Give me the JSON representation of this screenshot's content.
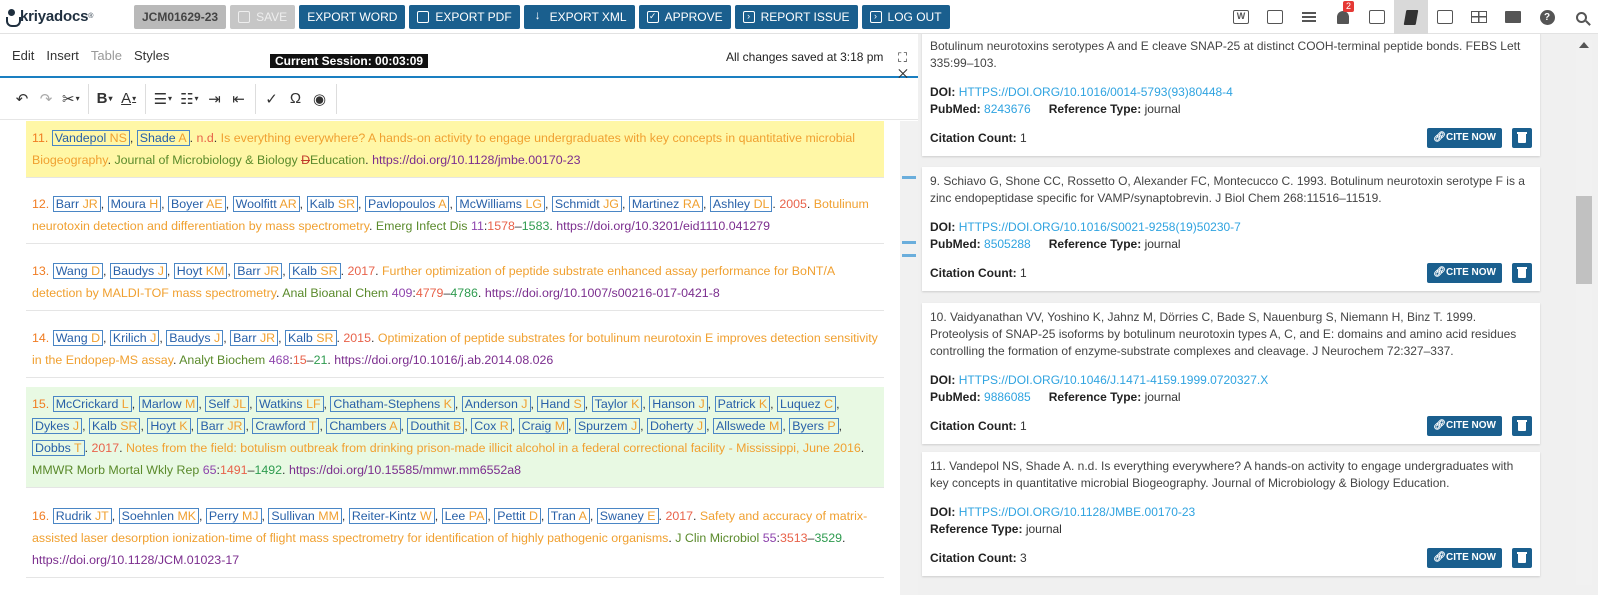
{
  "topbar": {
    "logo_text": "kriyadocs",
    "logo_reg": "®",
    "doc_id": "JCM01629-23",
    "buttons": {
      "save": "SAVE",
      "export_word": "EXPORT WORD",
      "export_pdf": "EXPORT PDF",
      "export_xml": "EXPORT XML",
      "approve": "APPROVE",
      "report_issue": "REPORT ISSUE",
      "log_out": "LOG OUT"
    },
    "icons": [
      "word-icon",
      "image-panel-icon",
      "list-icon",
      "notification-bell-icon",
      "edit-note-icon",
      "book-icon",
      "picture-icon",
      "table-icon",
      "folder-icon",
      "help-icon",
      "search-icon"
    ],
    "notification_count": "2"
  },
  "editor": {
    "menu": [
      "Edit",
      "Insert",
      "Table",
      "Styles"
    ],
    "session": "Current Session: 00:03:09",
    "saved_status": "All changes saved at 3:18 pm",
    "controls": "⛶ ✕"
  },
  "references": [
    {
      "num": "11.",
      "authors": [
        [
          "Vandepol",
          "NS"
        ],
        [
          "Shade",
          "A"
        ]
      ],
      "year": "n.d",
      "title": "Is everything everywhere? A hands-on activity to engage undergraduates with key concepts in quantitative microbial Biogeography",
      "journal_pre": "Journal of Microbiology & Biology ",
      "journal_del": "D",
      "journal_post": "Education",
      "doi": "https://doi.org/10.1128/jmbe.00170-23"
    },
    {
      "num": "12.",
      "authors": [
        [
          "Barr",
          "JR"
        ],
        [
          "Moura",
          "H"
        ],
        [
          "Boyer",
          "AE"
        ],
        [
          "Woolfitt",
          "AR"
        ],
        [
          "Kalb",
          "SR"
        ],
        [
          "Pavlopoulos",
          "A"
        ],
        [
          "McWilliams",
          "LG"
        ],
        [
          "Schmidt",
          "JG"
        ],
        [
          "Martinez",
          "RA"
        ],
        [
          "Ashley",
          "DL"
        ]
      ],
      "year": "2005",
      "title": "Botulinum neurotoxin detection and differentiation by mass spectrometry",
      "journal": "Emerg Infect Dis",
      "volume": "11",
      "fpage": "1578",
      "lpage": "1583",
      "doi": "https://doi.org/10.3201/eid1110.041279"
    },
    {
      "num": "13.",
      "authors": [
        [
          "Wang",
          "D"
        ],
        [
          "Baudys",
          "J"
        ],
        [
          "Hoyt",
          "KM"
        ],
        [
          "Barr",
          "JR"
        ],
        [
          "Kalb",
          "SR"
        ]
      ],
      "year": "2017",
      "title": "Further optimization of peptide substrate enhanced assay performance for BoNT/A detection by MALDI-TOF mass spectrometry",
      "journal": "Anal Bioanal Chem",
      "volume": "409",
      "fpage": "4779",
      "lpage": "4786",
      "doi": "https://doi.org/10.1007/s00216-017-0421-8"
    },
    {
      "num": "14.",
      "authors": [
        [
          "Wang",
          "D"
        ],
        [
          "Krilich",
          "J"
        ],
        [
          "Baudys",
          "J"
        ],
        [
          "Barr",
          "JR"
        ],
        [
          "Kalb",
          "SR"
        ]
      ],
      "year": "2015",
      "title": "Optimization of peptide substrates for botulinum neurotoxin E improves detection sensitivity in the Endopep-MS assay",
      "journal": "Analyt Biochem",
      "volume": "468",
      "fpage": "15",
      "lpage": "21",
      "doi": "https://doi.org/10.1016/j.ab.2014.08.026"
    },
    {
      "num": "15.",
      "authors": [
        [
          "McCrickard",
          "L"
        ],
        [
          "Marlow",
          "M"
        ],
        [
          "Self",
          "JL"
        ],
        [
          "Watkins",
          "LF"
        ],
        [
          "Chatham-Stephens",
          "K"
        ],
        [
          "Anderson",
          "J"
        ],
        [
          "Hand",
          "S"
        ],
        [
          "Taylor",
          "K"
        ],
        [
          "Hanson",
          "J"
        ],
        [
          "Patrick",
          "K"
        ],
        [
          "Luquez",
          "C"
        ],
        [
          "Dykes",
          "J"
        ],
        [
          "Kalb",
          "SR"
        ],
        [
          "Hoyt",
          "K"
        ],
        [
          "Barr",
          "JR"
        ],
        [
          "Crawford",
          "T"
        ],
        [
          "Chambers",
          "A"
        ],
        [
          "Douthit",
          "B"
        ],
        [
          "Cox",
          "R"
        ],
        [
          "Craig",
          "M"
        ],
        [
          "Spurzem",
          "J"
        ],
        [
          "Doherty",
          "J"
        ],
        [
          "Allswede",
          "M"
        ],
        [
          "Byers",
          "P"
        ],
        [
          "Dobbs",
          "T"
        ]
      ],
      "year": "2017",
      "title": "Notes from the field: botulism outbreak from drinking prison-made illicit alcohol in a federal correctional facility - Mississippi, June 2016",
      "journal": "MMWR Morb Mortal Wkly Rep",
      "volume": "65",
      "fpage": "1491",
      "lpage": "1492",
      "doi": "https://doi.org/10.15585/mmwr.mm6552a8"
    },
    {
      "num": "16.",
      "authors": [
        [
          "Rudrik",
          "JT"
        ],
        [
          "Soehnlen",
          "MK"
        ],
        [
          "Perry",
          "MJ"
        ],
        [
          "Sullivan",
          "MM"
        ],
        [
          "Reiter-Kintz",
          "W"
        ],
        [
          "Lee",
          "PA"
        ],
        [
          "Pettit",
          "D"
        ],
        [
          "Tran",
          "A"
        ],
        [
          "Swaney",
          "E"
        ]
      ],
      "year": "2017",
      "title": "Safety and accuracy of matrix-assisted laser desorption ionization-time of flight mass spectrometry for identification of highly pathogenic organisms",
      "journal": "J Clin Microbiol",
      "volume": "55",
      "fpage": "3513",
      "lpage": "3529",
      "doi": "https://doi.org/10.1128/JCM.01023-17"
    }
  ],
  "panel": {
    "labels": {
      "doi": "DOI:",
      "pubmed": "PubMed:",
      "reftype": "Reference Type:",
      "citation": "Citation Count:",
      "cite_now": "CITE NOW"
    },
    "cards": [
      {
        "text": "Botulinum neurotoxins serotypes A and E cleave SNAP-25 at distinct COOH-terminal peptide bonds. FEBS Lett 335:99–103.",
        "doi": "HTTPS://DOI.ORG/10.1016/0014-5793(93)80448-4",
        "pubmed": "8243676",
        "reftype": "journal",
        "citation": "1"
      },
      {
        "text": "9. Schiavo G, Shone CC, Rossetto O, Alexander FC, Montecucco C. 1993. Botulinum neurotoxin serotype F is a zinc endopeptidase specific for VAMP/synaptobrevin. J Biol Chem 268:11516–11519.",
        "doi": "HTTPS://DOI.ORG/10.1016/S0021-9258(19)50230-7",
        "pubmed": "8505288",
        "reftype": "journal",
        "citation": "1"
      },
      {
        "text": "10. Vaidyanathan VV, Yoshino K, Jahnz M, Dörries C, Bade S, Nauenburg S, Niemann H, Binz T. 1999. Proteolysis of SNAP-25 isoforms by botulinum neurotoxin types A, C, and E: domains and amino acid residues controlling the formation of enzyme-substrate complexes and cleavage. J Neurochem 72:327–337.",
        "doi": "HTTPS://DOI.ORG/10.1046/J.1471-4159.1999.0720327.X",
        "pubmed": "9886085",
        "reftype": "journal",
        "citation": "1"
      },
      {
        "text": "11. Vandepol NS, Shade A. n.d. Is everything everywhere? A hands-on activity to engage undergraduates with key concepts in quantitative microbial Biogeography. Journal of Microbiology & Biology Education.",
        "doi": "HTTPS://DOI.ORG/10.1128/JMBE.00170-23",
        "pubmed": "",
        "reftype": "journal",
        "citation": "3"
      }
    ]
  }
}
